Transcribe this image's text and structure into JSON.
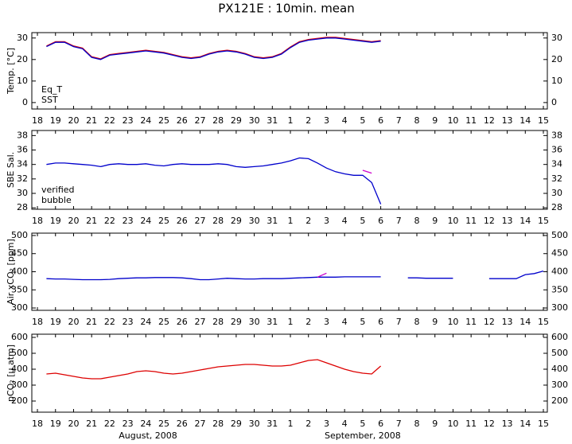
{
  "title": "PX121E : 10min. mean",
  "chart_data": [
    {
      "type": "line",
      "ylabel": "Temp. [°C]",
      "xlim": [
        -0.31,
        28.22
      ],
      "xticks": [
        {
          "value": 0,
          "label": "18"
        },
        {
          "value": 1,
          "label": "19"
        },
        {
          "value": 2,
          "label": "20"
        },
        {
          "value": 3,
          "label": "21"
        },
        {
          "value": 4,
          "label": "22"
        },
        {
          "value": 5,
          "label": "23"
        },
        {
          "value": 6,
          "label": "24"
        },
        {
          "value": 7,
          "label": "25"
        },
        {
          "value": 8,
          "label": "26"
        },
        {
          "value": 9,
          "label": "27"
        },
        {
          "value": 10,
          "label": "28"
        },
        {
          "value": 11,
          "label": "29"
        },
        {
          "value": 12,
          "label": "30"
        },
        {
          "value": 13,
          "label": "31"
        },
        {
          "value": 14,
          "label": "1"
        },
        {
          "value": 15,
          "label": "2"
        },
        {
          "value": 16,
          "label": "3"
        },
        {
          "value": 17,
          "label": "4"
        },
        {
          "value": 18,
          "label": "5"
        },
        {
          "value": 19,
          "label": "6"
        },
        {
          "value": 20,
          "label": "7"
        },
        {
          "value": 21,
          "label": "8"
        },
        {
          "value": 22,
          "label": "9"
        },
        {
          "value": 23,
          "label": "10"
        },
        {
          "value": 24,
          "label": "11"
        },
        {
          "value": 25,
          "label": "12"
        },
        {
          "value": 26,
          "label": "13"
        },
        {
          "value": 27,
          "label": "14"
        },
        {
          "value": 28,
          "label": "15"
        }
      ],
      "ylim": [
        -3,
        32.5
      ],
      "yticks": [
        0,
        10,
        20,
        30
      ],
      "x": [
        0.5,
        1,
        1.5,
        2,
        2.5,
        3,
        3.5,
        4,
        4.5,
        5,
        5.5,
        6,
        6.5,
        7,
        7.5,
        8,
        8.5,
        9,
        9.5,
        10,
        10.5,
        11,
        11.5,
        12,
        12.5,
        13,
        13.5,
        14,
        14.5,
        15,
        15.5,
        16,
        16.5,
        17,
        17.5,
        18,
        18.5,
        19
      ],
      "series": [
        {
          "name": "Eq_T",
          "color": "#dd0000",
          "values": [
            26.3,
            28.3,
            28.3,
            26.3,
            25.3,
            21.3,
            20.3,
            22.3,
            22.8,
            23.3,
            23.8,
            24.3,
            23.8,
            23.3,
            22.3,
            21.3,
            20.8,
            21.3,
            22.8,
            23.8,
            24.3,
            23.8,
            22.8,
            21.3,
            20.8,
            21.3,
            22.8,
            25.8,
            28.3,
            29.3,
            29.8,
            30.3,
            30.3,
            29.8,
            29.3,
            28.8,
            28.3,
            28.8
          ]
        },
        {
          "name": "SST",
          "color": "#0000cc",
          "values": [
            26,
            28,
            28,
            26,
            25,
            21,
            20,
            22,
            22.5,
            23,
            23.5,
            24,
            23.5,
            23,
            22,
            21,
            20.5,
            21,
            22.5,
            23.5,
            24,
            23.5,
            22.5,
            21,
            20.5,
            21,
            22.5,
            25.5,
            28,
            29,
            29.5,
            30,
            30,
            29.5,
            29,
            28.5,
            28,
            28.5
          ]
        }
      ]
    },
    {
      "type": "line",
      "ylabel": "SBE Sal.",
      "xlim": [
        -0.31,
        28.22
      ],
      "ylim": [
        27.8,
        38.7
      ],
      "yticks": [
        28,
        30,
        32,
        34,
        36,
        38
      ],
      "x": [
        0.5,
        1,
        1.5,
        2,
        2.5,
        3,
        3.5,
        4,
        4.5,
        5,
        5.5,
        6,
        6.5,
        7,
        7.5,
        8,
        8.5,
        9,
        9.5,
        10,
        10.5,
        11,
        11.5,
        12,
        12.5,
        13,
        13.5,
        14,
        14.5,
        15,
        15.5,
        16,
        16.5,
        17,
        17.5,
        18,
        18.5,
        19
      ],
      "series": [
        {
          "name": "verified",
          "color": "#0000cc",
          "values": [
            34,
            34.2,
            34.2,
            34.1,
            34,
            33.9,
            33.7,
            34,
            34.1,
            34,
            34,
            34.1,
            33.9,
            33.8,
            34,
            34.1,
            34,
            34,
            34,
            34.1,
            34,
            33.7,
            33.6,
            33.7,
            33.8,
            34,
            34.2,
            34.5,
            34.9,
            34.8,
            34.2,
            33.5,
            33,
            32.7,
            32.5,
            32.5,
            31.5,
            28.5
          ]
        },
        {
          "name": "bubble",
          "color": "#cc00cc",
          "values": [
            null,
            null,
            null,
            null,
            null,
            null,
            null,
            null,
            null,
            null,
            null,
            null,
            null,
            null,
            null,
            null,
            null,
            null,
            null,
            null,
            null,
            null,
            null,
            null,
            null,
            null,
            null,
            null,
            null,
            null,
            null,
            null,
            null,
            null,
            null,
            33.2,
            32.8,
            null
          ]
        }
      ]
    },
    {
      "type": "line",
      "ylabel": "Air xCO₂ [ppm]",
      "xlim": [
        -0.31,
        28.22
      ],
      "ylim": [
        293.5,
        506.5
      ],
      "yticks": [
        300,
        350,
        400,
        450,
        500
      ],
      "x": [
        0.5,
        1,
        1.5,
        2,
        2.5,
        3,
        3.5,
        4,
        4.5,
        5,
        5.5,
        6,
        6.5,
        7,
        7.5,
        8,
        8.5,
        9,
        9.5,
        10,
        10.5,
        11,
        11.5,
        12,
        12.5,
        13,
        13.5,
        14,
        14.5,
        15,
        15.5,
        16,
        16.5,
        17,
        17.5,
        18,
        18.5,
        19,
        19.5,
        20,
        20.5,
        21,
        21.5,
        22,
        22.5,
        23,
        23.5,
        24,
        24.5,
        25,
        25.5,
        26,
        26.5,
        27,
        27.5,
        28
      ],
      "series": [
        {
          "color": "#0000cc",
          "values": [
            381,
            380,
            380,
            379,
            378,
            378,
            378,
            379,
            381,
            382,
            383,
            383,
            384,
            384,
            384,
            383,
            381,
            378,
            378,
            380,
            382,
            381,
            380,
            380,
            381,
            381,
            381,
            382,
            383,
            384,
            385,
            385,
            385,
            386,
            386,
            386,
            386,
            386,
            null,
            null,
            383,
            383,
            382,
            382,
            382,
            382,
            null,
            null,
            null,
            381,
            381,
            381,
            381,
            392,
            395,
            402
          ]
        },
        {
          "color": "#cc00cc",
          "values": [
            null,
            null,
            null,
            null,
            null,
            null,
            null,
            null,
            null,
            null,
            null,
            null,
            null,
            null,
            null,
            null,
            null,
            null,
            null,
            null,
            null,
            null,
            null,
            null,
            null,
            null,
            null,
            null,
            null,
            null,
            385,
            396,
            null,
            null,
            null,
            null,
            null,
            null,
            null,
            null,
            null,
            null,
            null,
            null,
            null,
            null,
            null,
            null,
            null,
            null,
            null,
            null,
            null,
            null,
            null,
            null
          ]
        }
      ]
    },
    {
      "type": "line",
      "ylabel": "pCO₂ [μ atm]",
      "xlim": [
        -0.31,
        28.22
      ],
      "ylim": [
        130,
        620
      ],
      "yticks": [
        200,
        300,
        400,
        500,
        600
      ],
      "xlabels": [
        "August, 2008",
        "September, 2008"
      ],
      "x": [
        0.5,
        1,
        1.5,
        2,
        2.5,
        3,
        3.5,
        4,
        4.5,
        5,
        5.5,
        6,
        6.5,
        7,
        7.5,
        8,
        8.5,
        9,
        9.5,
        10,
        10.5,
        11,
        11.5,
        12,
        12.5,
        13,
        13.5,
        14,
        14.5,
        15,
        15.5,
        16,
        16.5,
        17,
        17.5,
        18,
        18.5,
        19
      ],
      "series": [
        {
          "color": "#dd0000",
          "values": [
            370,
            375,
            365,
            355,
            345,
            340,
            340,
            350,
            360,
            370,
            385,
            390,
            385,
            375,
            370,
            375,
            385,
            395,
            405,
            415,
            420,
            425,
            430,
            430,
            425,
            420,
            420,
            425,
            440,
            455,
            460,
            440,
            420,
            400,
            385,
            375,
            370,
            420
          ]
        }
      ]
    }
  ]
}
